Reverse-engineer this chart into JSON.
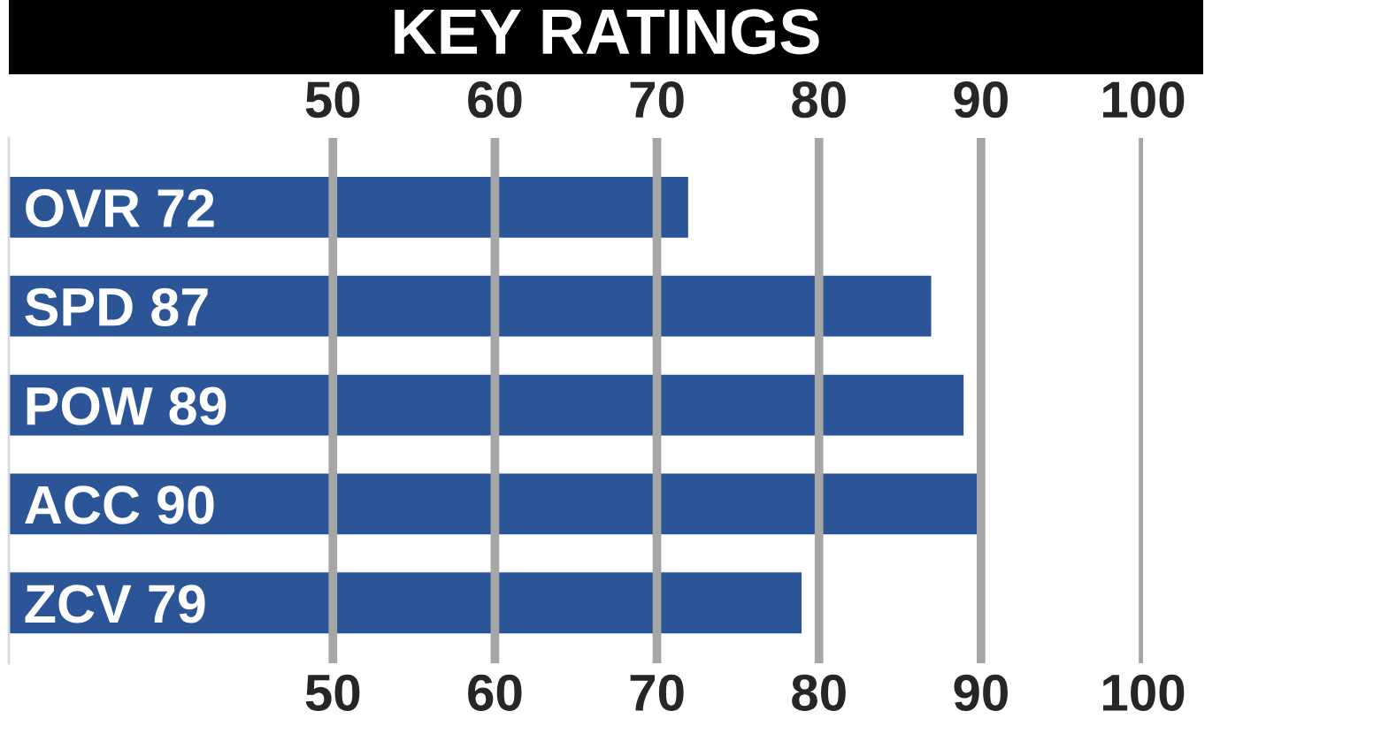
{
  "chart_data": {
    "type": "bar",
    "title": "KEY RATINGS",
    "orientation": "horizontal",
    "categories": [
      "OVR 72",
      "SPD 87",
      "POW 89",
      "ACC 90",
      "ZCV 79"
    ],
    "values": [
      72,
      87,
      89,
      90,
      79
    ],
    "color": "#2b5597",
    "xlim": [
      30,
      100
    ],
    "xticks": [
      50,
      60,
      70,
      80,
      90,
      100
    ],
    "x2lim": [
      30,
      100
    ],
    "x2ticks": [
      50,
      60,
      70,
      80,
      90,
      100
    ],
    "grid": "x"
  }
}
